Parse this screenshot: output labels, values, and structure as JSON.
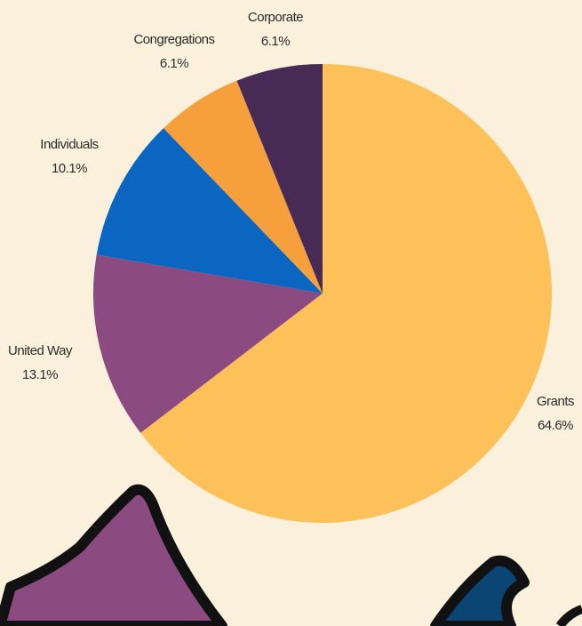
{
  "chart_data": {
    "type": "pie",
    "categories": [
      "Grants",
      "United Way",
      "Individuals",
      "Congregations",
      "Corporate"
    ],
    "values": [
      64.6,
      13.1,
      10.1,
      6.1,
      6.1
    ],
    "value_labels": [
      "64.6%",
      "13.1%",
      "10.1%",
      "6.1%",
      "6.1%"
    ],
    "colors": [
      "#fdc159",
      "#8b4a80",
      "#0b66c2",
      "#f5a03c",
      "#472b55"
    ]
  }
}
